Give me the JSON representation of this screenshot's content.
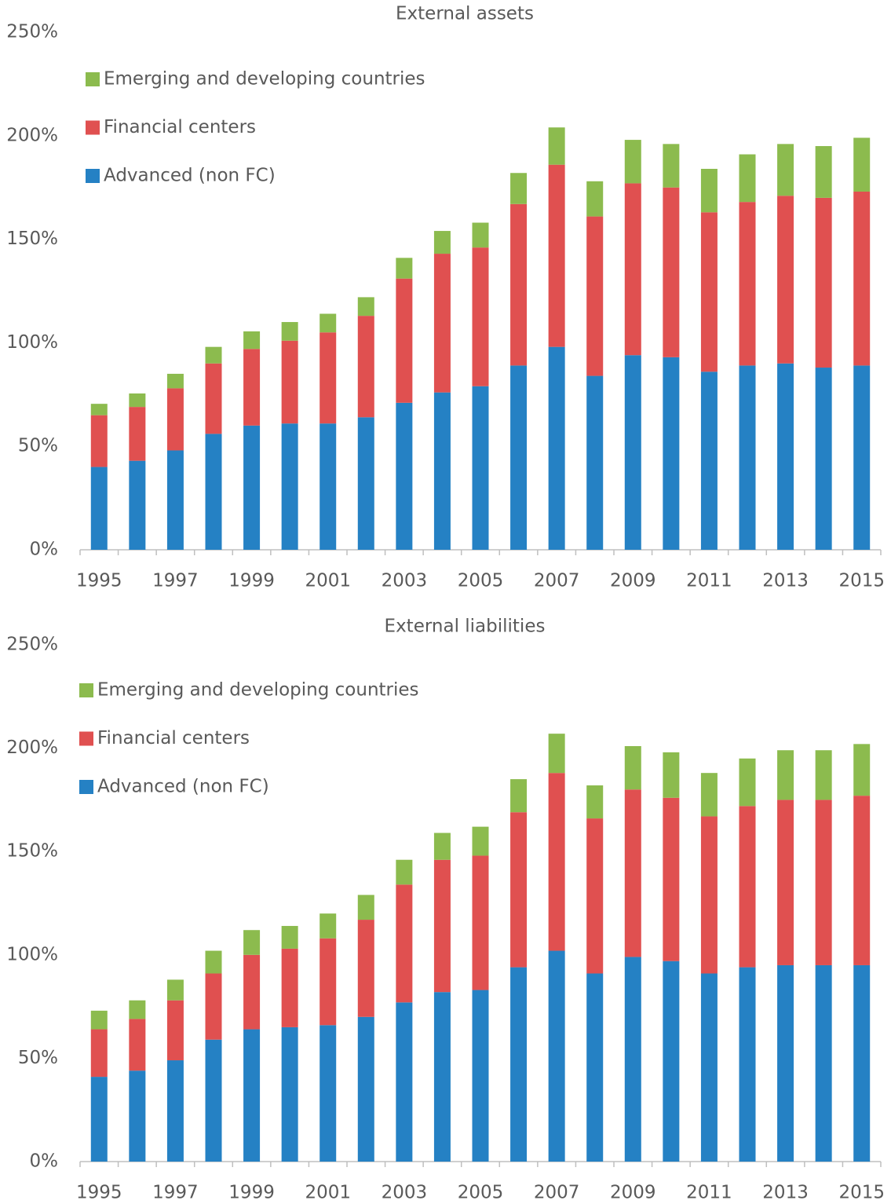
{
  "chart_data": [
    {
      "type": "bar",
      "stacked": true,
      "title": "External assets",
      "categories": [
        "1995",
        null,
        "1997",
        null,
        "1999",
        null,
        "2001",
        null,
        "2003",
        null,
        "2005",
        null,
        "2007",
        null,
        "2009",
        null,
        "2011",
        null,
        "2013",
        null,
        "2015"
      ],
      "series": [
        {
          "name": "Advanced (non FC)",
          "color": "#2581c4",
          "values": [
            40,
            43,
            48,
            56,
            60,
            61,
            61,
            64,
            71,
            76,
            79,
            89,
            98,
            84,
            94,
            93,
            86,
            89,
            90,
            88,
            89
          ]
        },
        {
          "name": "Financial centers",
          "color": "#e05050",
          "values": [
            25,
            26,
            30,
            34,
            37,
            40,
            44,
            49,
            60,
            67,
            67,
            78,
            88,
            77,
            83,
            82,
            77,
            79,
            81,
            82,
            84
          ]
        },
        {
          "name": "Emerging and developing countries",
          "color": "#8cbb4e",
          "values": [
            5.5,
            6.5,
            7,
            8,
            8.5,
            9,
            9,
            9,
            10,
            11,
            12,
            15,
            18,
            17,
            21,
            21,
            21,
            23,
            25,
            25,
            26
          ]
        }
      ],
      "ylim": [
        0,
        250
      ],
      "yticks": [
        {
          "value": 0,
          "label": "0%"
        },
        {
          "value": 50,
          "label": "50%"
        },
        {
          "value": 100,
          "label": "100%"
        },
        {
          "value": 150,
          "label": "150%"
        },
        {
          "value": 200,
          "label": "200%"
        },
        {
          "value": 250,
          "label": "250%"
        }
      ],
      "legend": "upper left",
      "grid": false
    },
    {
      "type": "bar",
      "stacked": true,
      "title": "External liabilities",
      "categories": [
        "1995",
        null,
        "1997",
        null,
        "1999",
        null,
        "2001",
        null,
        "2003",
        null,
        "2005",
        null,
        "2007",
        null,
        "2009",
        null,
        "2011",
        null,
        "2013",
        null,
        "2015"
      ],
      "series": [
        {
          "name": "Advanced (non FC)",
          "color": "#2581c4",
          "values": [
            41,
            44,
            49,
            59,
            64,
            65,
            66,
            70,
            77,
            82,
            83,
            94,
            102,
            91,
            99,
            97,
            91,
            94,
            95,
            95,
            95
          ]
        },
        {
          "name": "Financial centers",
          "color": "#e05050",
          "values": [
            23,
            25,
            29,
            32,
            36,
            38,
            42,
            47,
            57,
            64,
            65,
            75,
            86,
            75,
            81,
            79,
            76,
            78,
            80,
            80,
            82
          ]
        },
        {
          "name": "Emerging and developing countries",
          "color": "#8cbb4e",
          "values": [
            9,
            9,
            10,
            11,
            12,
            11,
            12,
            12,
            12,
            13,
            14,
            16,
            19,
            16,
            21,
            22,
            21,
            23,
            24,
            24,
            25
          ]
        }
      ],
      "ylim": [
        0,
        250
      ],
      "yticks": [
        {
          "value": 0,
          "label": "0%"
        },
        {
          "value": 50,
          "label": "50%"
        },
        {
          "value": 100,
          "label": "100%"
        },
        {
          "value": 150,
          "label": "150%"
        },
        {
          "value": 200,
          "label": "200%"
        },
        {
          "value": 250,
          "label": "250%"
        }
      ],
      "legend": "upper left",
      "grid": false
    }
  ]
}
